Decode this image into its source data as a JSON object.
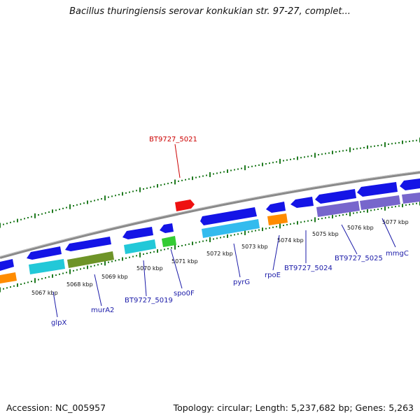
{
  "title": "Bacillus thuringiensis serovar konkukian str. 97-27, complet...",
  "footer": {
    "accession": "Accession: NC_005957",
    "summary": "Topology: circular; Length: 5,237,682 bp; Genes: 5,263"
  },
  "colors": {
    "backbone": "#8a8a8a",
    "ticks": "#1f7a1f",
    "label_blue": "#1a1aa8",
    "label_red": "#cc0000",
    "gene_blue": "#1414e6",
    "gene_cyan": "#22c8d8",
    "gene_olive": "#6e9428",
    "gene_green": "#33cc33",
    "gene_orange": "#ff8c00",
    "gene_sky": "#33bbee",
    "gene_purple": "#7766cc",
    "gene_red": "#ee1111"
  },
  "scale": {
    "kbp_labels": [
      "5067 kbp",
      "5068 kbp",
      "5069 kbp",
      "5070 kbp",
      "5071 kbp",
      "5072 kbp",
      "5073 kbp",
      "5074 kbp",
      "5075 kbp",
      "5076 kbp",
      "5077 kbp"
    ]
  },
  "gene_labels": [
    {
      "text": "glpX",
      "kind": "blue"
    },
    {
      "text": "murA2",
      "kind": "blue"
    },
    {
      "text": "BT9727_5019",
      "kind": "blue"
    },
    {
      "text": "spo0F",
      "kind": "blue"
    },
    {
      "text": "pyrG",
      "kind": "blue"
    },
    {
      "text": "rpoE",
      "kind": "blue"
    },
    {
      "text": "BT9727_5024",
      "kind": "blue"
    },
    {
      "text": "BT9727_5025",
      "kind": "blue"
    },
    {
      "text": "mmgC",
      "kind": "blue"
    },
    {
      "text": "BT9727_5021",
      "kind": "red"
    }
  ]
}
